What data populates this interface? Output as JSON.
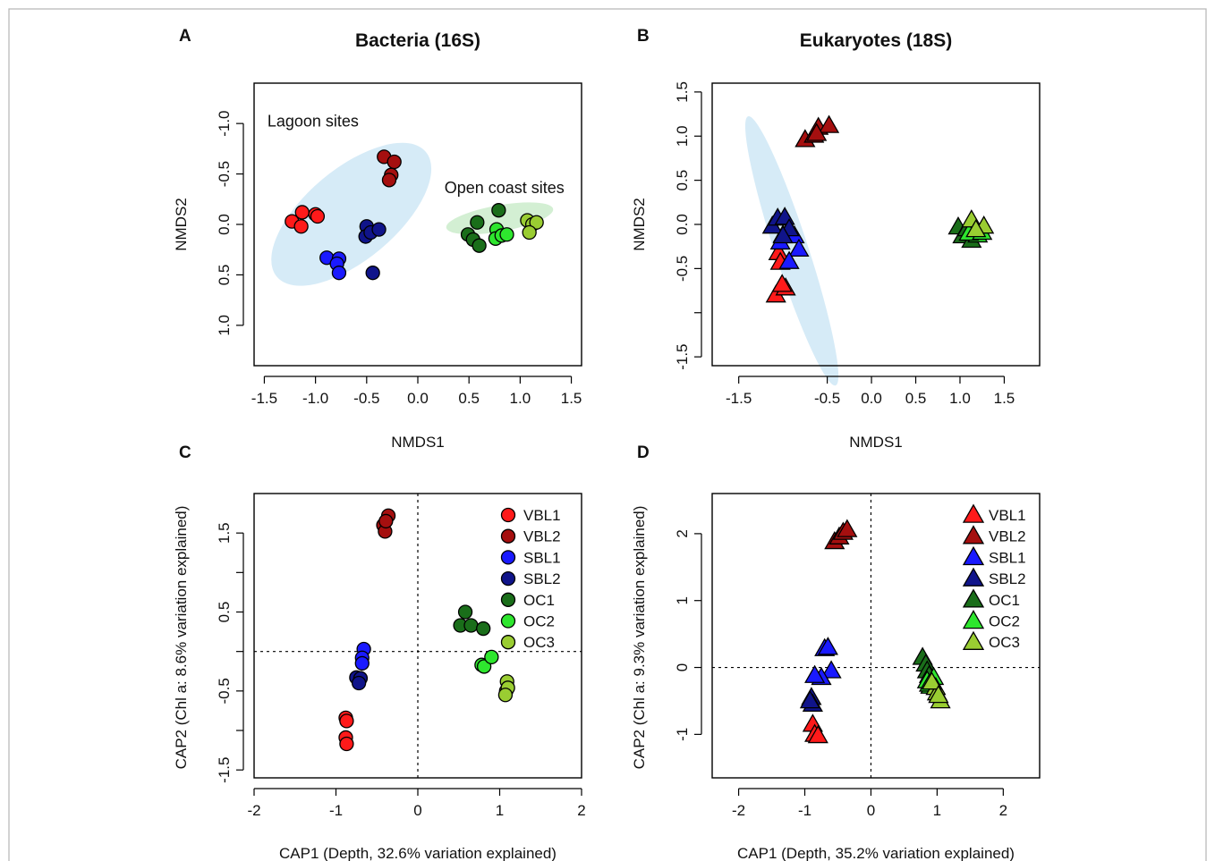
{
  "colors": {
    "VBL1": "#ff1a1a",
    "VBL2": "#a50f0f",
    "SBL1": "#1a1aff",
    "SBL2": "#10148a",
    "OC1": "#1a6e1a",
    "OC2": "#2ee62e",
    "OC3": "#9acd32",
    "lagoon_ellipse": "#d6ebf7",
    "coast_ellipse": "#d3efd3"
  },
  "chart_data": [
    {
      "id": "A",
      "letter": "A",
      "type": "scatter",
      "marker": "circle",
      "title": "Bacteria (16S)",
      "xlabel": "NMDS1",
      "ylabel": "NMDS2",
      "xlim": [
        -1.6,
        1.6
      ],
      "ylim": [
        -1.4,
        1.4
      ],
      "y_reversed": true,
      "xticks": [
        -1.5,
        -1.0,
        -0.5,
        0.0,
        0.5,
        1.0,
        1.5
      ],
      "xtick_labels": [
        "-1.5",
        "-1.0",
        "-0.5",
        "0.0",
        "0.5",
        "1.0",
        "1.5"
      ],
      "yticks": [
        -1.0,
        -0.5,
        0.0,
        0.5,
        1.0
      ],
      "ytick_labels": [
        "-1.0",
        "-0.5",
        "0.0",
        "0.5",
        "1.0"
      ],
      "grid": false,
      "ellipses": [
        {
          "group": "lagoon",
          "cx": -0.65,
          "cy": -0.1,
          "rx": 0.95,
          "ry": 0.45,
          "angle": -40
        },
        {
          "group": "coast",
          "cx": 0.8,
          "cy": -0.06,
          "rx": 0.53,
          "ry": 0.13,
          "angle": -10
        }
      ],
      "annotations": [
        {
          "text": "Lagoon sites",
          "x": -1.47,
          "y": -0.97,
          "anchor": "start"
        },
        {
          "text": "Open coast sites",
          "x": 0.26,
          "y": -0.31,
          "anchor": "start"
        }
      ],
      "series": [
        {
          "name": "VBL1",
          "points": [
            [
              -1.23,
              -0.03
            ],
            [
              -1.13,
              -0.12
            ],
            [
              -1.14,
              0.02
            ],
            [
              -1.0,
              -0.1
            ],
            [
              -0.98,
              -0.08
            ]
          ]
        },
        {
          "name": "VBL2",
          "points": [
            [
              -0.33,
              -0.67
            ],
            [
              -0.23,
              -0.62
            ],
            [
              -0.26,
              -0.49
            ],
            [
              -0.28,
              -0.44
            ]
          ]
        },
        {
          "name": "SBL1",
          "points": [
            [
              -0.89,
              0.33
            ],
            [
              -0.77,
              0.34
            ],
            [
              -0.79,
              0.39
            ],
            [
              -0.77,
              0.48
            ]
          ]
        },
        {
          "name": "SBL2",
          "points": [
            [
              -0.5,
              0.02
            ],
            [
              -0.51,
              0.12
            ],
            [
              -0.46,
              0.08
            ],
            [
              -0.38,
              0.05
            ],
            [
              -0.44,
              0.48
            ]
          ]
        },
        {
          "name": "OC1",
          "points": [
            [
              0.49,
              0.1
            ],
            [
              0.58,
              -0.02
            ],
            [
              0.54,
              0.15
            ],
            [
              0.6,
              0.21
            ],
            [
              0.79,
              -0.14
            ]
          ]
        },
        {
          "name": "OC2",
          "points": [
            [
              0.77,
              0.05
            ],
            [
              0.76,
              0.14
            ],
            [
              0.82,
              0.11
            ],
            [
              0.87,
              0.1
            ]
          ]
        },
        {
          "name": "OC3",
          "points": [
            [
              1.07,
              -0.04
            ],
            [
              1.12,
              0.0
            ],
            [
              1.16,
              -0.02
            ],
            [
              1.09,
              0.08
            ]
          ]
        }
      ]
    },
    {
      "id": "B",
      "letter": "B",
      "type": "scatter",
      "marker": "triangle",
      "title": "Eukaryotes (18S)",
      "xlabel": "NMDS1",
      "ylabel": "NMDS2",
      "xlim": [
        -1.8,
        1.9
      ],
      "ylim": [
        -1.6,
        1.6
      ],
      "y_reversed": false,
      "xticks": [
        -1.5,
        -0.5,
        0.0,
        0.5,
        1.0,
        1.5
      ],
      "xtick_labels": [
        "-1.5",
        "-0.5",
        "0.0",
        "0.5",
        "1.0",
        "1.5"
      ],
      "yticks": [
        -1.5,
        -0.5,
        0.0,
        0.5,
        1.0,
        1.5
      ],
      "ytick_labels": [
        "-1.5",
        "-0.5",
        "0.0",
        "0.5",
        "1.0",
        "1.5"
      ],
      "extra_yticks": [
        -1.0
      ],
      "grid": false,
      "ellipses": [
        {
          "group": "lagoon",
          "cx": -0.9,
          "cy": -0.3,
          "rx": 1.6,
          "ry": 0.19,
          "angle": 72
        }
      ],
      "annotations": [],
      "series": [
        {
          "name": "VBL1",
          "points": [
            [
              -1.05,
              -0.32
            ],
            [
              -1.03,
              -0.43
            ],
            [
              -1.08,
              -0.8
            ],
            [
              -0.97,
              -0.72
            ],
            [
              -1.01,
              -0.68
            ]
          ]
        },
        {
          "name": "VBL2",
          "points": [
            [
              -0.75,
              0.96
            ],
            [
              -0.65,
              1.01
            ],
            [
              -0.6,
              1.1
            ],
            [
              -0.48,
              1.12
            ],
            [
              -0.62,
              1.03
            ]
          ]
        },
        {
          "name": "SBL1",
          "points": [
            [
              -1.0,
              -0.12
            ],
            [
              -0.87,
              -0.13
            ],
            [
              -0.82,
              -0.28
            ],
            [
              -0.93,
              -0.42
            ],
            [
              -1.03,
              -0.2
            ]
          ]
        },
        {
          "name": "SBL2",
          "points": [
            [
              -1.12,
              -0.02
            ],
            [
              -1.06,
              0.07
            ],
            [
              -0.98,
              0.08
            ],
            [
              -0.93,
              -0.05
            ],
            [
              -1.0,
              -0.13
            ]
          ]
        },
        {
          "name": "OC1",
          "points": [
            [
              0.98,
              -0.03
            ],
            [
              1.03,
              -0.13
            ],
            [
              1.08,
              -0.05
            ],
            [
              1.13,
              -0.18
            ]
          ]
        },
        {
          "name": "OC2",
          "points": [
            [
              1.17,
              -0.08
            ],
            [
              1.2,
              -0.12
            ],
            [
              1.1,
              -0.1
            ],
            [
              1.25,
              -0.09
            ]
          ]
        },
        {
          "name": "OC3",
          "points": [
            [
              1.13,
              0.05
            ],
            [
              1.27,
              -0.02
            ],
            [
              1.18,
              -0.06
            ]
          ]
        }
      ]
    },
    {
      "id": "C",
      "letter": "C",
      "type": "scatter",
      "marker": "circle",
      "title": "",
      "xlabel": "CAP1 (Depth, 32.6% variation explained)",
      "ylabel": "CAP2 (Chl a: 8.6% variation explained)",
      "xlim": [
        -2.0,
        2.0
      ],
      "ylim": [
        -1.6,
        2.0
      ],
      "y_reversed": false,
      "xticks": [
        -2,
        -1,
        0,
        1,
        2
      ],
      "xtick_labels": [
        "-2",
        "-1",
        "0",
        "1",
        "2"
      ],
      "yticks": [
        -1.5,
        -0.5,
        0.5,
        1.5
      ],
      "ytick_labels": [
        "-1.5",
        "-0.5",
        "0.5",
        "1.5"
      ],
      "extra_yticks": [
        -1.0,
        0.0,
        1.0
      ],
      "grid": false,
      "reference_lines": {
        "x": 0,
        "y": 0
      },
      "legend_position": "top-right",
      "legend": [
        "VBL1",
        "VBL2",
        "SBL1",
        "SBL2",
        "OC1",
        "OC2",
        "OC3"
      ],
      "series": [
        {
          "name": "VBL1",
          "points": [
            [
              -0.88,
              -0.84
            ],
            [
              -0.87,
              -0.88
            ],
            [
              -0.88,
              -1.09
            ],
            [
              -0.87,
              -1.17
            ]
          ]
        },
        {
          "name": "VBL2",
          "points": [
            [
              -0.42,
              1.6
            ],
            [
              -0.4,
              1.52
            ],
            [
              -0.36,
              1.72
            ],
            [
              -0.39,
              1.65
            ]
          ]
        },
        {
          "name": "SBL1",
          "points": [
            [
              -0.66,
              0.03
            ],
            [
              -0.68,
              -0.08
            ],
            [
              -0.68,
              -0.15
            ]
          ]
        },
        {
          "name": "SBL2",
          "points": [
            [
              -0.75,
              -0.33
            ],
            [
              -0.7,
              -0.34
            ],
            [
              -0.72,
              -0.4
            ]
          ]
        },
        {
          "name": "OC1",
          "points": [
            [
              0.52,
              0.33
            ],
            [
              0.58,
              0.5
            ],
            [
              0.65,
              0.33
            ],
            [
              0.8,
              0.29
            ]
          ]
        },
        {
          "name": "OC2",
          "points": [
            [
              0.78,
              -0.17
            ],
            [
              0.81,
              -0.19
            ],
            [
              0.9,
              -0.07
            ]
          ]
        },
        {
          "name": "OC3",
          "points": [
            [
              1.09,
              -0.38
            ],
            [
              1.08,
              -0.5
            ],
            [
              1.1,
              -0.46
            ],
            [
              1.07,
              -0.55
            ]
          ]
        }
      ]
    },
    {
      "id": "D",
      "letter": "D",
      "type": "scatter",
      "marker": "triangle",
      "title": "",
      "xlabel": "CAP1 (Depth, 35.2% variation explained)",
      "ylabel": "CAP2 (Chl a: 9.3% variation explained)",
      "xlim": [
        -2.4,
        2.55
      ],
      "ylim": [
        -1.65,
        2.6
      ],
      "y_reversed": false,
      "xticks": [
        -2,
        -1,
        0,
        1,
        2
      ],
      "xtick_labels": [
        "-2",
        "-1",
        "0",
        "1",
        "2"
      ],
      "yticks": [
        -1,
        0,
        1,
        2
      ],
      "ytick_labels": [
        "-1",
        "0",
        "1",
        "2"
      ],
      "grid": false,
      "reference_lines": {
        "x": 0,
        "y": 0
      },
      "legend_position": "top-right",
      "legend": [
        "VBL1",
        "VBL2",
        "SBL1",
        "SBL2",
        "OC1",
        "OC2",
        "OC3"
      ],
      "series": [
        {
          "name": "VBL1",
          "points": [
            [
              -0.88,
              -0.85
            ],
            [
              -0.85,
              -1.0
            ],
            [
              -0.8,
              -1.02
            ]
          ]
        },
        {
          "name": "VBL2",
          "points": [
            [
              -0.55,
              1.88
            ],
            [
              -0.48,
              1.95
            ],
            [
              -0.42,
              2.02
            ],
            [
              -0.36,
              2.06
            ]
          ]
        },
        {
          "name": "SBL1",
          "points": [
            [
              -0.7,
              0.28
            ],
            [
              -0.65,
              0.3
            ],
            [
              -0.6,
              -0.05
            ],
            [
              -0.75,
              -0.15
            ],
            [
              -0.85,
              -0.12
            ]
          ]
        },
        {
          "name": "SBL2",
          "points": [
            [
              -0.9,
              -0.45
            ],
            [
              -0.88,
              -0.55
            ],
            [
              -0.92,
              -0.5
            ]
          ]
        },
        {
          "name": "OC1",
          "points": [
            [
              0.78,
              0.15
            ],
            [
              0.83,
              0.05
            ],
            [
              0.85,
              -0.05
            ],
            [
              0.88,
              -0.12
            ]
          ]
        },
        {
          "name": "OC2",
          "points": [
            [
              0.85,
              -0.2
            ],
            [
              0.9,
              -0.28
            ],
            [
              0.95,
              -0.15
            ],
            [
              0.88,
              -0.25
            ]
          ]
        },
        {
          "name": "OC3",
          "points": [
            [
              0.98,
              -0.3
            ],
            [
              1.05,
              -0.5
            ],
            [
              1.0,
              -0.38
            ],
            [
              0.92,
              -0.22
            ],
            [
              1.02,
              -0.42
            ]
          ]
        }
      ]
    }
  ]
}
